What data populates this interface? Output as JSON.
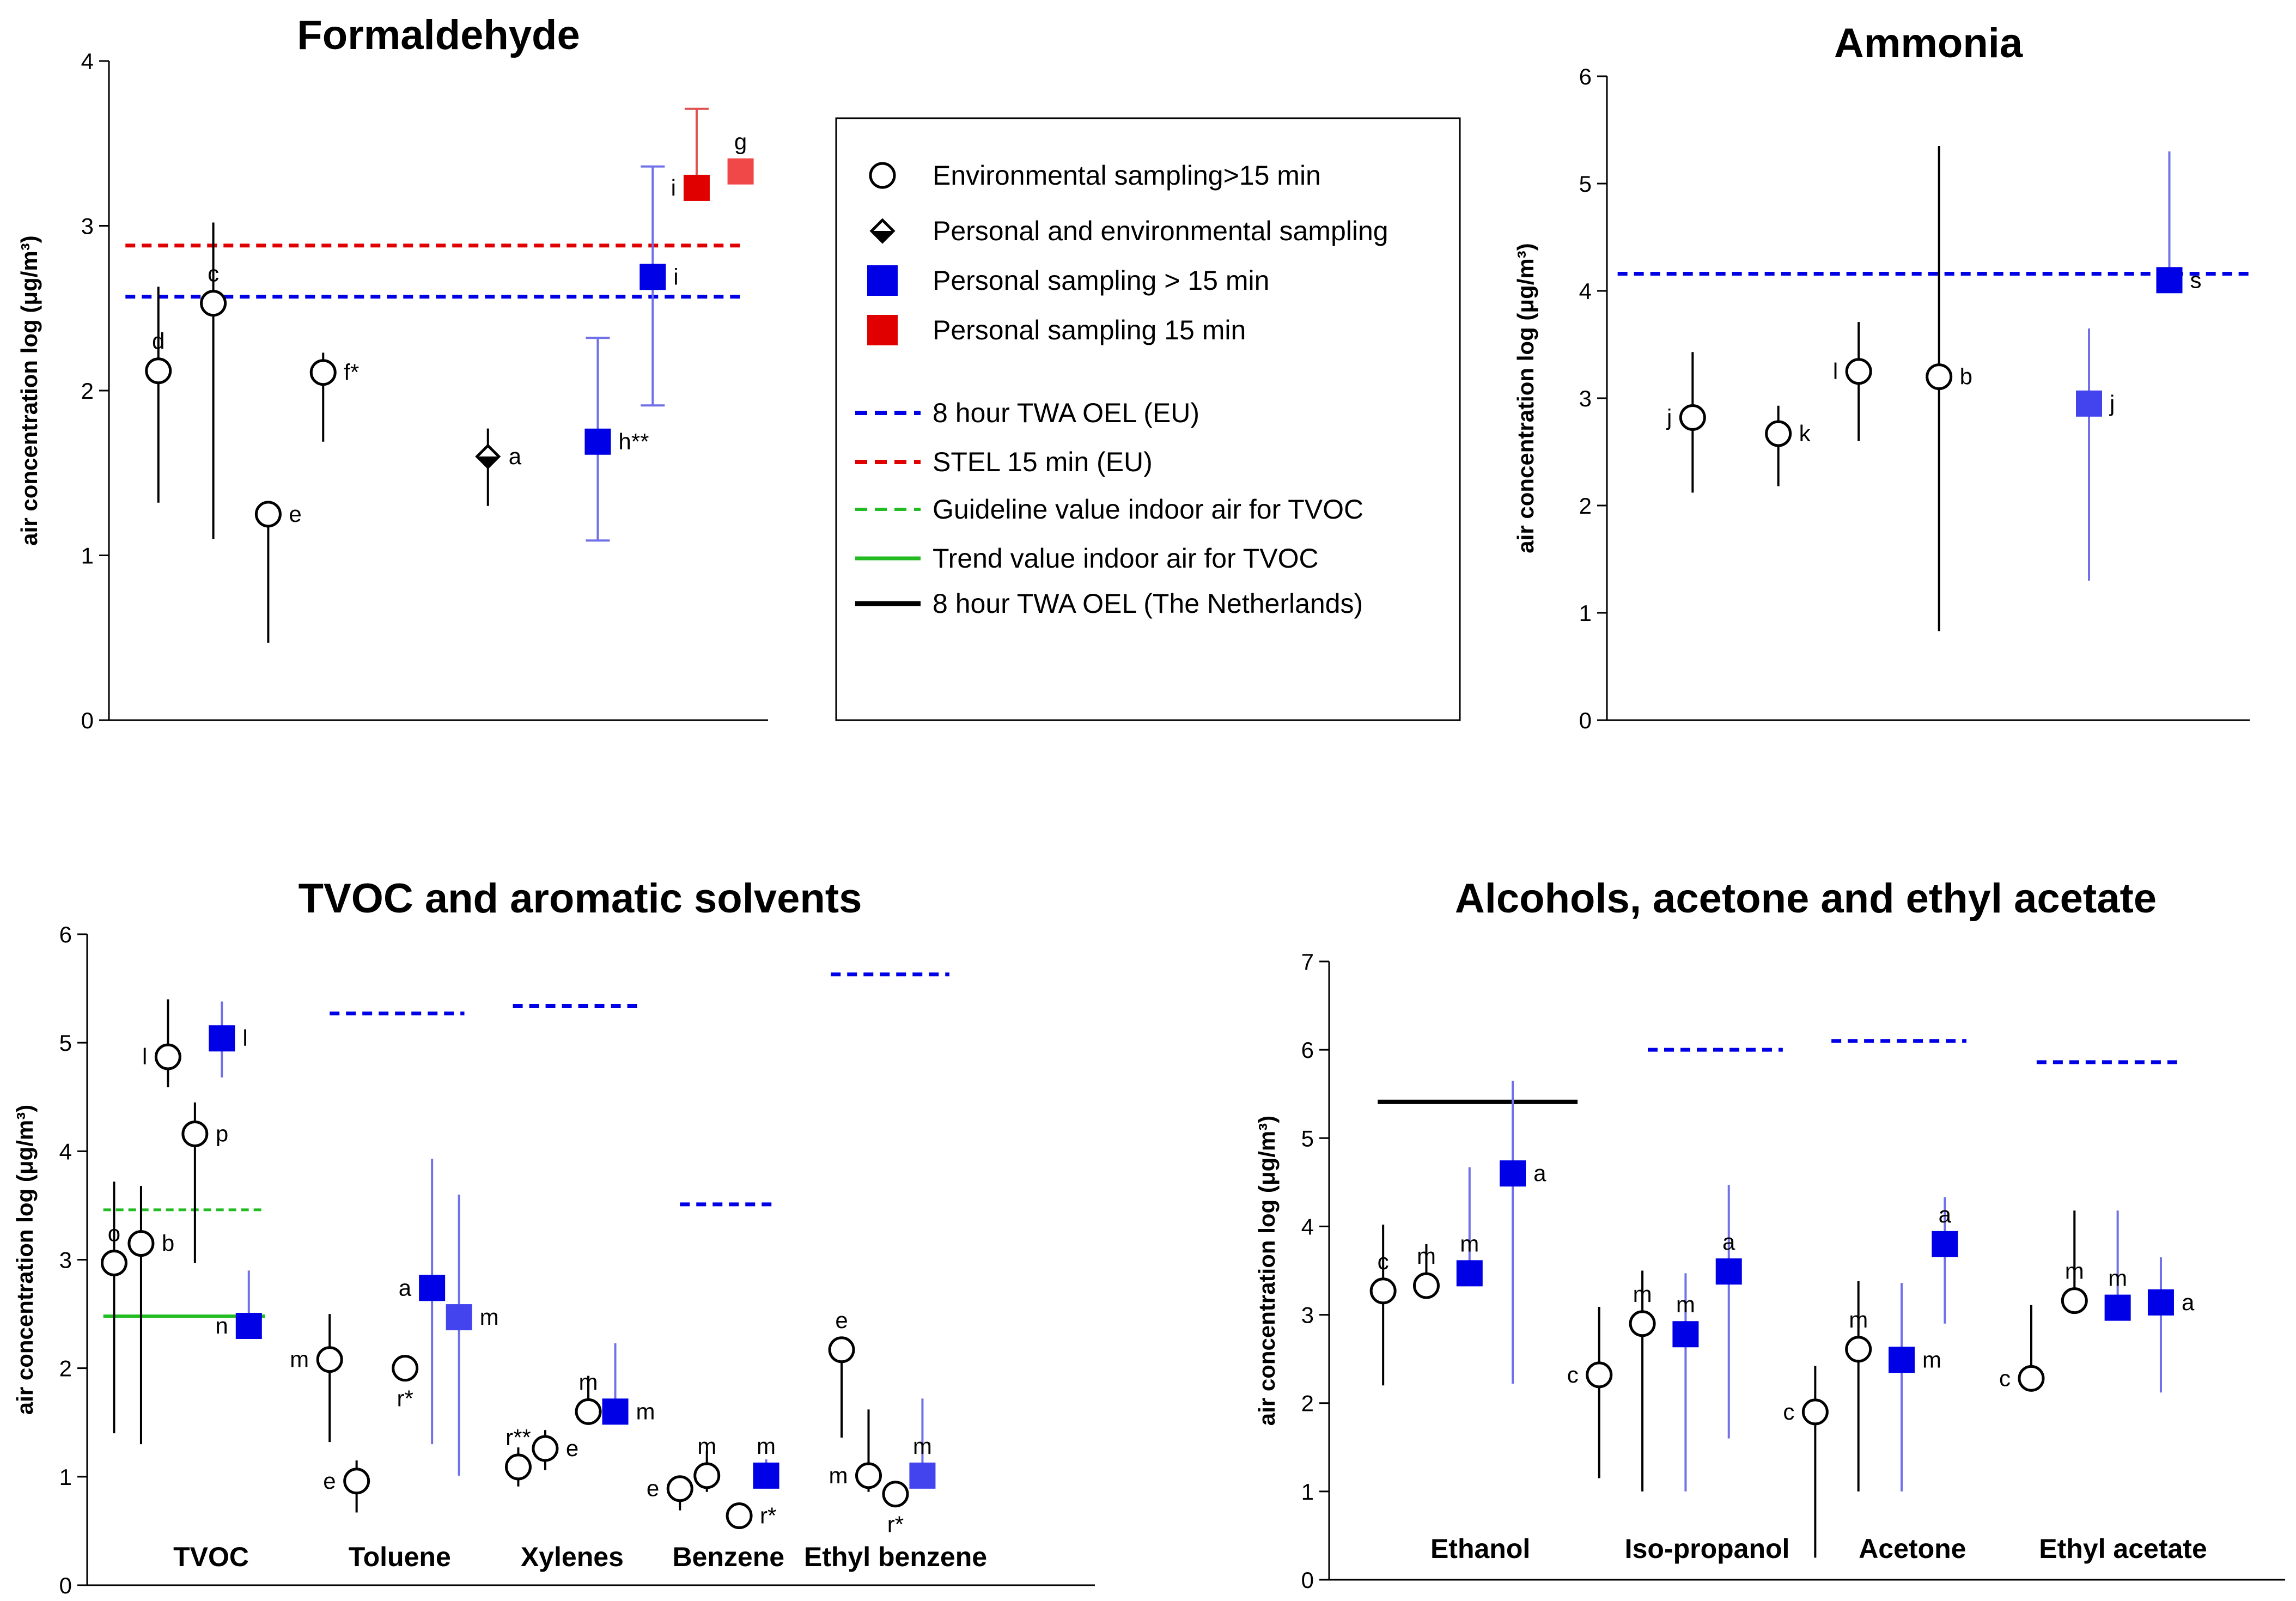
{
  "colors": {
    "black": "#000000",
    "blue": "#0000e6",
    "blue_light": "#4444ee",
    "red": "#e00000",
    "red_light": "#f04848",
    "green": "#22bb22",
    "errbar_blue": "#7070e8",
    "errbar_red": "#e05050"
  },
  "legend": {
    "items": [
      {
        "label": "Environmental sampling>15 min",
        "marker": "circle"
      },
      {
        "label": "Personal and environmental sampling",
        "marker": "diamond"
      },
      {
        "label": "Personal sampling > 15 min",
        "marker": "blue-square"
      },
      {
        "label": "Personal sampling 15 min",
        "marker": "red-square"
      },
      {
        "label": "8 hour TWA OEL (EU)",
        "marker": "blue-dash"
      },
      {
        "label": "STEL 15 min (EU)",
        "marker": "red-dash"
      },
      {
        "label": "Guideline value indoor air for TVOC",
        "marker": "green-dash"
      },
      {
        "label": "Trend value indoor air for TVOC",
        "marker": "green-solid"
      },
      {
        "label": "8 hour TWA OEL (The Netherlands)",
        "marker": "black-solid"
      }
    ]
  },
  "chart_data": [
    {
      "id": "formaldehyde",
      "type": "scatter",
      "title": "Formaldehyde",
      "ylabel": "air concentration log (μg/m³)",
      "ylim": [
        0,
        4
      ],
      "yticks": [
        0,
        1,
        2,
        3,
        4
      ],
      "xlim": [
        0,
        12
      ],
      "categories": [],
      "hlines": [
        {
          "y": 2.88,
          "x0": 0.3,
          "x1": 11.5,
          "style": "red-dash"
        },
        {
          "y": 2.57,
          "x0": 0.3,
          "x1": 11.5,
          "style": "blue-dash"
        }
      ],
      "points": [
        {
          "x": 0.9,
          "y": 2.12,
          "lo": 1.32,
          "hi": 2.63,
          "marker": "circle",
          "label": "d",
          "lpos": "top"
        },
        {
          "x": 1.9,
          "y": 2.53,
          "lo": 1.1,
          "hi": 3.02,
          "marker": "circle",
          "label": "c",
          "lpos": "top"
        },
        {
          "x": 2.9,
          "y": 1.25,
          "lo": 0.47,
          "hi": 1.25,
          "marker": "circle",
          "label": "e",
          "lpos": "right"
        },
        {
          "x": 3.9,
          "y": 2.11,
          "lo": 1.69,
          "hi": 2.23,
          "marker": "circle",
          "label": "f*",
          "lpos": "right"
        },
        {
          "x": 6.9,
          "y": 1.6,
          "lo": 1.3,
          "hi": 1.77,
          "marker": "diamond",
          "label": "a",
          "lpos": "right"
        },
        {
          "x": 8.9,
          "y": 1.69,
          "lo": 1.09,
          "hi": 2.32,
          "marker": "blue-square",
          "label": "h**",
          "lpos": "right"
        },
        {
          "x": 9.9,
          "y": 2.69,
          "lo": 1.91,
          "hi": 3.36,
          "marker": "blue-square",
          "label": "i",
          "lpos": "right"
        },
        {
          "x": 10.7,
          "y": 3.23,
          "lo": 3.23,
          "hi": 3.71,
          "marker": "red-square",
          "label": "i",
          "lpos": "left"
        },
        {
          "x": 11.5,
          "y": 3.33,
          "lo": null,
          "hi": null,
          "marker": "red-square-light",
          "label": "g",
          "lpos": "top"
        }
      ]
    },
    {
      "id": "ammonia",
      "type": "scatter",
      "title": "Ammonia",
      "ylabel": "air concentration log (μg/m³)",
      "ylim": [
        0,
        6
      ],
      "yticks": [
        0,
        1,
        2,
        3,
        4,
        5,
        6
      ],
      "xlim": [
        0,
        12
      ],
      "categories": [],
      "hlines": [
        {
          "y": 4.16,
          "x0": 0.2,
          "x1": 12.0,
          "style": "blue-dash"
        }
      ],
      "points": [
        {
          "x": 1.6,
          "y": 2.82,
          "lo": 2.12,
          "hi": 3.43,
          "marker": "circle",
          "label": "j",
          "lpos": "left"
        },
        {
          "x": 3.2,
          "y": 2.67,
          "lo": 2.18,
          "hi": 2.93,
          "marker": "circle",
          "label": "k",
          "lpos": "right"
        },
        {
          "x": 4.7,
          "y": 3.25,
          "lo": 2.6,
          "hi": 3.71,
          "marker": "circle",
          "label": "l",
          "lpos": "left"
        },
        {
          "x": 6.2,
          "y": 3.2,
          "lo": 0.83,
          "hi": 5.35,
          "marker": "circle",
          "label": "b",
          "lpos": "right"
        },
        {
          "x": 9.0,
          "y": 2.95,
          "lo": 1.3,
          "hi": 3.65,
          "marker": "blue-square-light",
          "label": "j",
          "lpos": "right"
        },
        {
          "x": 10.5,
          "y": 4.1,
          "lo": null,
          "hi": 5.3,
          "marker": "blue-square",
          "label": "s",
          "lpos": "right"
        }
      ]
    },
    {
      "id": "tvoc",
      "type": "scatter",
      "title": "TVOC and aromatic solvents",
      "ylabel": "air concentration log (μg/m³)",
      "ylim": [
        0,
        6
      ],
      "yticks": [
        0,
        1,
        2,
        3,
        4,
        5,
        6
      ],
      "xlim": [
        0,
        18.7
      ],
      "categories": [
        {
          "label": "TVOC",
          "x": 2.3
        },
        {
          "label": "Toluene",
          "x": 5.8
        },
        {
          "label": "Xylenes",
          "x": 9.0
        },
        {
          "label": "Benzene",
          "x": 11.9
        },
        {
          "label": "Ethyl benzene",
          "x": 15.0
        }
      ],
      "hlines": [
        {
          "y": 3.46,
          "x0": 0.3,
          "x1": 3.3,
          "style": "green-dash"
        },
        {
          "y": 2.48,
          "x0": 0.3,
          "x1": 3.3,
          "style": "green-solid"
        },
        {
          "y": 5.27,
          "x0": 4.5,
          "x1": 7.0,
          "style": "blue-dash"
        },
        {
          "y": 5.34,
          "x0": 7.9,
          "x1": 10.3,
          "style": "blue-dash"
        },
        {
          "y": 3.51,
          "x0": 11.0,
          "x1": 12.8,
          "style": "blue-dash"
        },
        {
          "y": 5.63,
          "x0": 13.8,
          "x1": 16.0,
          "style": "blue-dash"
        }
      ],
      "points": [
        {
          "x": 0.5,
          "y": 2.97,
          "lo": 1.4,
          "hi": 3.72,
          "marker": "circle",
          "label": "o",
          "lpos": "top"
        },
        {
          "x": 1.0,
          "y": 3.15,
          "lo": 1.3,
          "hi": 3.68,
          "marker": "circle",
          "label": "b",
          "lpos": "right"
        },
        {
          "x": 1.5,
          "y": 4.87,
          "lo": 4.59,
          "hi": 5.4,
          "marker": "circle",
          "label": "l",
          "lpos": "left"
        },
        {
          "x": 2.0,
          "y": 4.16,
          "lo": 2.97,
          "hi": 4.45,
          "marker": "circle",
          "label": "p",
          "lpos": "right"
        },
        {
          "x": 2.5,
          "y": 5.04,
          "lo": 4.68,
          "hi": 5.38,
          "marker": "blue-square",
          "label": "l",
          "lpos": "right"
        },
        {
          "x": 3.0,
          "y": 2.39,
          "lo": 2.39,
          "hi": 2.9,
          "marker": "blue-square",
          "label": "n",
          "lpos": "left"
        },
        {
          "x": 4.5,
          "y": 2.08,
          "lo": 1.32,
          "hi": 2.5,
          "marker": "circle",
          "label": "m",
          "lpos": "left"
        },
        {
          "x": 5.0,
          "y": 0.96,
          "lo": 0.67,
          "hi": 1.15,
          "marker": "circle",
          "label": "e",
          "lpos": "left"
        },
        {
          "x": 5.9,
          "y": 2.0,
          "lo": null,
          "hi": null,
          "marker": "circle",
          "label": "r*",
          "lpos": "bottom"
        },
        {
          "x": 6.4,
          "y": 2.74,
          "lo": 1.3,
          "hi": 3.93,
          "marker": "blue-square",
          "label": "a",
          "lpos": "left"
        },
        {
          "x": 6.9,
          "y": 2.47,
          "lo": 1.01,
          "hi": 3.6,
          "marker": "blue-square-light",
          "label": "m",
          "lpos": "right"
        },
        {
          "x": 8.0,
          "y": 1.09,
          "lo": 0.91,
          "hi": 1.27,
          "marker": "circle",
          "label": "r**",
          "lpos": "top"
        },
        {
          "x": 8.5,
          "y": 1.26,
          "lo": 1.06,
          "hi": 1.43,
          "marker": "circle",
          "label": "e",
          "lpos": "right"
        },
        {
          "x": 9.3,
          "y": 1.6,
          "lo": 1.6,
          "hi": 1.93,
          "marker": "circle",
          "label": "m",
          "lpos": "top"
        },
        {
          "x": 9.8,
          "y": 1.6,
          "lo": 1.6,
          "hi": 2.23,
          "marker": "blue-square",
          "label": "m",
          "lpos": "right"
        },
        {
          "x": 11.0,
          "y": 0.89,
          "lo": 0.69,
          "hi": 0.99,
          "marker": "circle",
          "label": "e",
          "lpos": "left"
        },
        {
          "x": 11.5,
          "y": 1.01,
          "lo": 0.86,
          "hi": 1.24,
          "marker": "circle",
          "label": "m",
          "lpos": "top"
        },
        {
          "x": 12.1,
          "y": 0.64,
          "lo": null,
          "hi": null,
          "marker": "circle",
          "label": "r*",
          "lpos": "right"
        },
        {
          "x": 12.6,
          "y": 1.01,
          "lo": 1.01,
          "hi": 1.16,
          "marker": "blue-square",
          "label": "m",
          "lpos": "top"
        },
        {
          "x": 14.0,
          "y": 2.17,
          "lo": 1.36,
          "hi": 2.17,
          "marker": "circle",
          "label": "e",
          "lpos": "top"
        },
        {
          "x": 14.5,
          "y": 1.01,
          "lo": 0.86,
          "hi": 1.62,
          "marker": "circle",
          "label": "m",
          "lpos": "left"
        },
        {
          "x": 15.0,
          "y": 0.84,
          "lo": null,
          "hi": null,
          "marker": "circle",
          "label": "r*",
          "lpos": "bottom"
        },
        {
          "x": 15.5,
          "y": 1.01,
          "lo": 0.9,
          "hi": 1.72,
          "marker": "blue-square-light",
          "label": "m",
          "lpos": "top"
        }
      ]
    },
    {
      "id": "alcohols",
      "type": "scatter",
      "title": "Alcohols, acetone and ethyl acetate",
      "ylabel": "air concentration log (μg/m³)",
      "ylim": [
        0,
        7
      ],
      "yticks": [
        0,
        1,
        2,
        3,
        4,
        5,
        6,
        7
      ],
      "xlim": [
        0,
        17.7
      ],
      "categories": [
        {
          "label": "Ethanol",
          "x": 2.8
        },
        {
          "label": "Iso-propanol",
          "x": 7.0
        },
        {
          "label": "Acetone",
          "x": 10.8
        },
        {
          "label": "Ethyl acetate",
          "x": 14.7
        }
      ],
      "hlines": [
        {
          "y": 5.41,
          "x0": 0.9,
          "x1": 4.6,
          "style": "black-solid"
        },
        {
          "y": 6.0,
          "x0": 5.9,
          "x1": 8.4,
          "style": "blue-dash"
        },
        {
          "y": 6.1,
          "x0": 9.3,
          "x1": 11.8,
          "style": "blue-dash"
        },
        {
          "y": 5.86,
          "x0": 13.1,
          "x1": 15.7,
          "style": "blue-dash"
        }
      ],
      "points": [
        {
          "x": 1.0,
          "y": 3.27,
          "lo": 2.2,
          "hi": 4.02,
          "marker": "circle",
          "label": "c",
          "lpos": "top"
        },
        {
          "x": 1.8,
          "y": 3.33,
          "lo": 3.33,
          "hi": 3.8,
          "marker": "circle",
          "label": "m",
          "lpos": "top"
        },
        {
          "x": 2.6,
          "y": 3.47,
          "lo": 3.47,
          "hi": 4.67,
          "marker": "blue-square",
          "label": "m",
          "lpos": "top"
        },
        {
          "x": 3.4,
          "y": 4.6,
          "lo": 2.22,
          "hi": 5.65,
          "marker": "blue-square",
          "label": "a",
          "lpos": "right"
        },
        {
          "x": 5.0,
          "y": 2.32,
          "lo": 1.15,
          "hi": 3.09,
          "marker": "circle",
          "label": "c",
          "lpos": "left"
        },
        {
          "x": 5.8,
          "y": 2.9,
          "lo": 1.0,
          "hi": 3.5,
          "marker": "circle",
          "label": "m",
          "lpos": "top"
        },
        {
          "x": 6.6,
          "y": 2.78,
          "lo": 1.0,
          "hi": 3.47,
          "marker": "blue-square",
          "label": "m",
          "lpos": "top"
        },
        {
          "x": 7.4,
          "y": 3.49,
          "lo": 1.6,
          "hi": 4.47,
          "marker": "blue-square",
          "label": "a",
          "lpos": "top"
        },
        {
          "x": 9.0,
          "y": 1.9,
          "lo": 0.25,
          "hi": 2.42,
          "marker": "circle",
          "label": "c",
          "lpos": "left"
        },
        {
          "x": 9.8,
          "y": 2.61,
          "lo": 1.0,
          "hi": 3.38,
          "marker": "circle",
          "label": "m",
          "lpos": "top"
        },
        {
          "x": 10.6,
          "y": 2.49,
          "lo": 1.0,
          "hi": 3.36,
          "marker": "blue-square",
          "label": "m",
          "lpos": "right"
        },
        {
          "x": 11.4,
          "y": 3.8,
          "lo": 2.9,
          "hi": 4.33,
          "marker": "blue-square",
          "label": "a",
          "lpos": "top"
        },
        {
          "x": 13.0,
          "y": 2.28,
          "lo": 2.28,
          "hi": 3.11,
          "marker": "circle",
          "label": "c",
          "lpos": "left"
        },
        {
          "x": 13.8,
          "y": 3.16,
          "lo": 3.16,
          "hi": 4.18,
          "marker": "circle",
          "label": "m",
          "lpos": "top"
        },
        {
          "x": 14.6,
          "y": 3.08,
          "lo": 3.08,
          "hi": 4.18,
          "marker": "blue-square",
          "label": "m",
          "lpos": "top"
        },
        {
          "x": 15.4,
          "y": 3.14,
          "lo": 2.12,
          "hi": 3.65,
          "marker": "blue-square",
          "label": "a",
          "lpos": "right"
        }
      ]
    }
  ]
}
